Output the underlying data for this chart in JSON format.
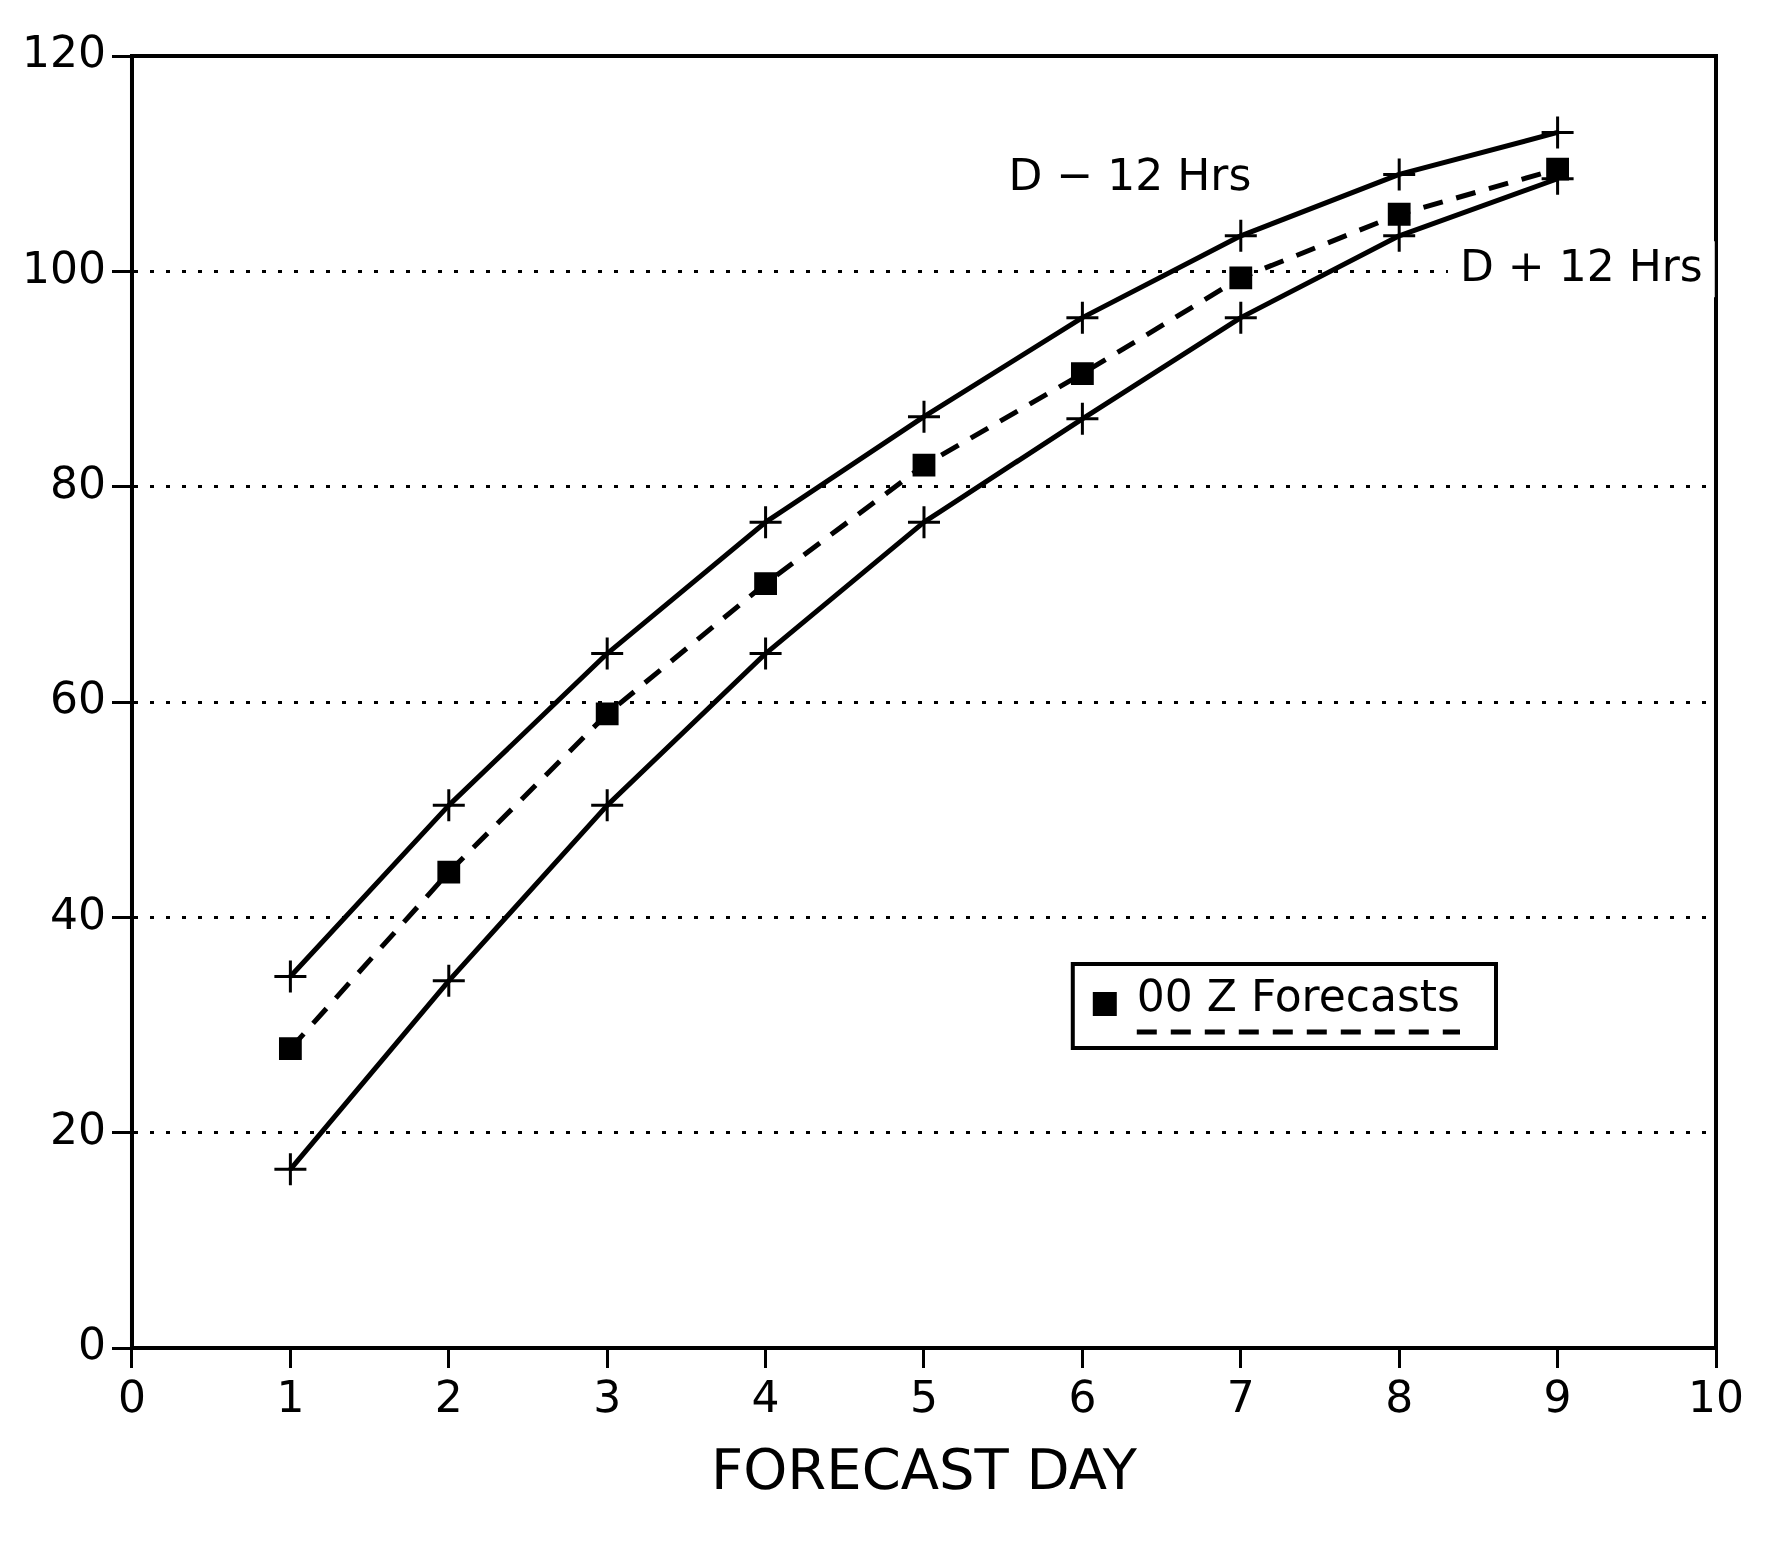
{
  "chart_data": {
    "type": "line",
    "xlabel": "FORECAST DAY",
    "x": [
      1,
      2,
      3,
      4,
      5,
      6,
      7,
      8,
      9
    ],
    "series": [
      {
        "color": "#000000",
        "marker": "cross",
        "line_style": "solid",
        "values": [
          34.5,
          50.4,
          64.5,
          76.7,
          86.5,
          95.7,
          103.3,
          109.0,
          112.9
        ]
      },
      {
        "name": "00 Z Forecasts",
        "color": "#000000",
        "marker": "square",
        "line_style": "dashed",
        "values": [
          27.8,
          44.2,
          58.9,
          71.0,
          82.0,
          90.5,
          99.4,
          105.3,
          109.5
        ]
      },
      {
        "color": "#000000",
        "marker": "cross",
        "line_style": "solid",
        "values": [
          16.6,
          34.1,
          50.4,
          64.5,
          76.7,
          86.3,
          95.7,
          103.3,
          108.6
        ]
      }
    ],
    "annotations": [
      "D − 12 Hrs",
      "D + 12 Hrs"
    ],
    "xlim": [
      0,
      10
    ],
    "xticks": [
      0,
      1,
      2,
      3,
      4,
      5,
      6,
      7,
      8,
      9,
      10
    ],
    "ylim": [
      0,
      120
    ],
    "yticks": [
      0,
      20,
      40,
      60,
      80,
      100,
      120
    ],
    "grid": "y",
    "legend": "bottom right"
  }
}
